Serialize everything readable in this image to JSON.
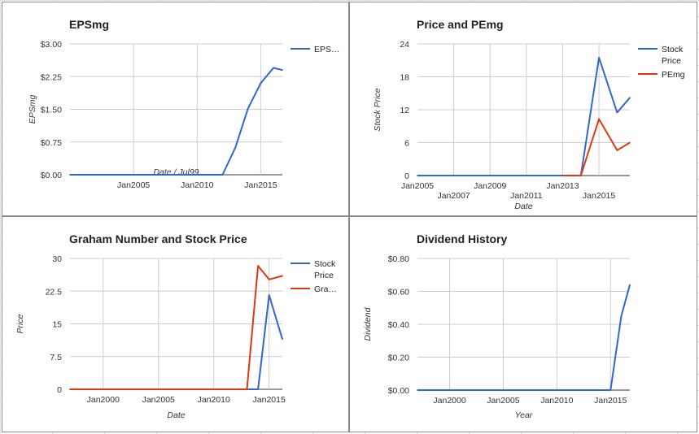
{
  "chart_data": [
    {
      "type": "line",
      "title": "EPSmg",
      "xlabel": "Date / Jul99",
      "ylabel": "EPSmg",
      "xlim": [
        2000.0,
        2016.7
      ],
      "ylim": [
        0,
        3.0
      ],
      "x_ticks": [
        {
          "v": 2005,
          "label": "Jan2005"
        },
        {
          "v": 2010,
          "label": "Jan2010"
        },
        {
          "v": 2015,
          "label": "Jan2015"
        }
      ],
      "y_ticks": [
        {
          "v": 0,
          "label": "$0.00"
        },
        {
          "v": 0.75,
          "label": "$0.75"
        },
        {
          "v": 1.5,
          "label": "$1.50"
        },
        {
          "v": 2.25,
          "label": "$2.25"
        },
        {
          "v": 3.0,
          "label": "$3.00"
        }
      ],
      "grid": true,
      "legend": "right",
      "series": [
        {
          "name": "EPS…",
          "color": "#3366cc",
          "x": [
            2000,
            2011,
            2012,
            2013,
            2014,
            2015,
            2016,
            2016.7
          ],
          "y": [
            0,
            0,
            0,
            0.62,
            1.52,
            2.1,
            2.45,
            2.4
          ]
        }
      ]
    },
    {
      "type": "line",
      "title": "Price and PEmg",
      "xlabel": "Date",
      "ylabel": "Stock Price",
      "xlim": [
        2005.0,
        2016.7
      ],
      "ylim": [
        0,
        24
      ],
      "x_ticks": [
        {
          "v": 2005,
          "label": "Jan2005",
          "row": 0
        },
        {
          "v": 2007,
          "label": "Jan2007",
          "row": 1
        },
        {
          "v": 2009,
          "label": "Jan2009",
          "row": 0
        },
        {
          "v": 2011,
          "label": "Jan2011",
          "row": 1
        },
        {
          "v": 2013,
          "label": "Jan2013",
          "row": 0
        },
        {
          "v": 2015,
          "label": "Jan2015",
          "row": 1
        }
      ],
      "y_ticks": [
        {
          "v": 0,
          "label": "0"
        },
        {
          "v": 6,
          "label": "6"
        },
        {
          "v": 12,
          "label": "12"
        },
        {
          "v": 18,
          "label": "18"
        },
        {
          "v": 24,
          "label": "24"
        }
      ],
      "grid": true,
      "legend": "right",
      "series": [
        {
          "name": "Stock Price",
          "color": "#3366cc",
          "x": [
            2005,
            2014,
            2015,
            2016,
            2016.7
          ],
          "y": [
            0,
            0,
            21.5,
            11.5,
            14.2
          ]
        },
        {
          "name": "PEmg",
          "color": "#dc3912",
          "x": [
            2013,
            2014,
            2015,
            2016,
            2016.7
          ],
          "y": [
            0,
            0,
            10.3,
            4.6,
            6.0
          ]
        }
      ]
    },
    {
      "type": "line",
      "title": "Graham Number and Stock Price",
      "xlabel": "Date",
      "ylabel": "Price",
      "xlim": [
        1997.0,
        2016.2
      ],
      "ylim": [
        0,
        30
      ],
      "x_ticks": [
        {
          "v": 2000,
          "label": "Jan2000"
        },
        {
          "v": 2005,
          "label": "Jan2005"
        },
        {
          "v": 2010,
          "label": "Jan2010"
        },
        {
          "v": 2015,
          "label": "Jan2015"
        }
      ],
      "y_ticks": [
        {
          "v": 0,
          "label": "0"
        },
        {
          "v": 7.5,
          "label": "7.5"
        },
        {
          "v": 15,
          "label": "15"
        },
        {
          "v": 22.5,
          "label": "22.5"
        },
        {
          "v": 30,
          "label": "30"
        }
      ],
      "grid": true,
      "legend": "right",
      "series": [
        {
          "name": "Stock Price",
          "color": "#3366cc",
          "x": [
            1997,
            2014,
            2015,
            2016.2
          ],
          "y": [
            0,
            0,
            21.6,
            11.5
          ]
        },
        {
          "name": "Gra…",
          "color": "#dc3912",
          "x": [
            1997,
            2013,
            2014,
            2015,
            2016.2
          ],
          "y": [
            0,
            0,
            28.3,
            25.2,
            26.0
          ]
        }
      ]
    },
    {
      "type": "line",
      "title": "Dividend History",
      "xlabel": "Year",
      "ylabel": "Dividend",
      "xlim": [
        1997.0,
        2016.8
      ],
      "ylim": [
        0,
        0.8
      ],
      "x_ticks": [
        {
          "v": 2000,
          "label": "Jan2000"
        },
        {
          "v": 2005,
          "label": "Jan2005"
        },
        {
          "v": 2010,
          "label": "Jan2010"
        },
        {
          "v": 2015,
          "label": "Jan2015"
        }
      ],
      "y_ticks": [
        {
          "v": 0,
          "label": "$0.00"
        },
        {
          "v": 0.2,
          "label": "$0.20"
        },
        {
          "v": 0.4,
          "label": "$0.40"
        },
        {
          "v": 0.6,
          "label": "$0.60"
        },
        {
          "v": 0.8,
          "label": "$0.80"
        }
      ],
      "grid": true,
      "legend": "none",
      "series": [
        {
          "color": "#3366cc",
          "x": [
            1997,
            2014,
            2015,
            2016,
            2016.8
          ],
          "y": [
            0,
            0,
            0,
            0.45,
            0.64
          ]
        }
      ]
    }
  ]
}
